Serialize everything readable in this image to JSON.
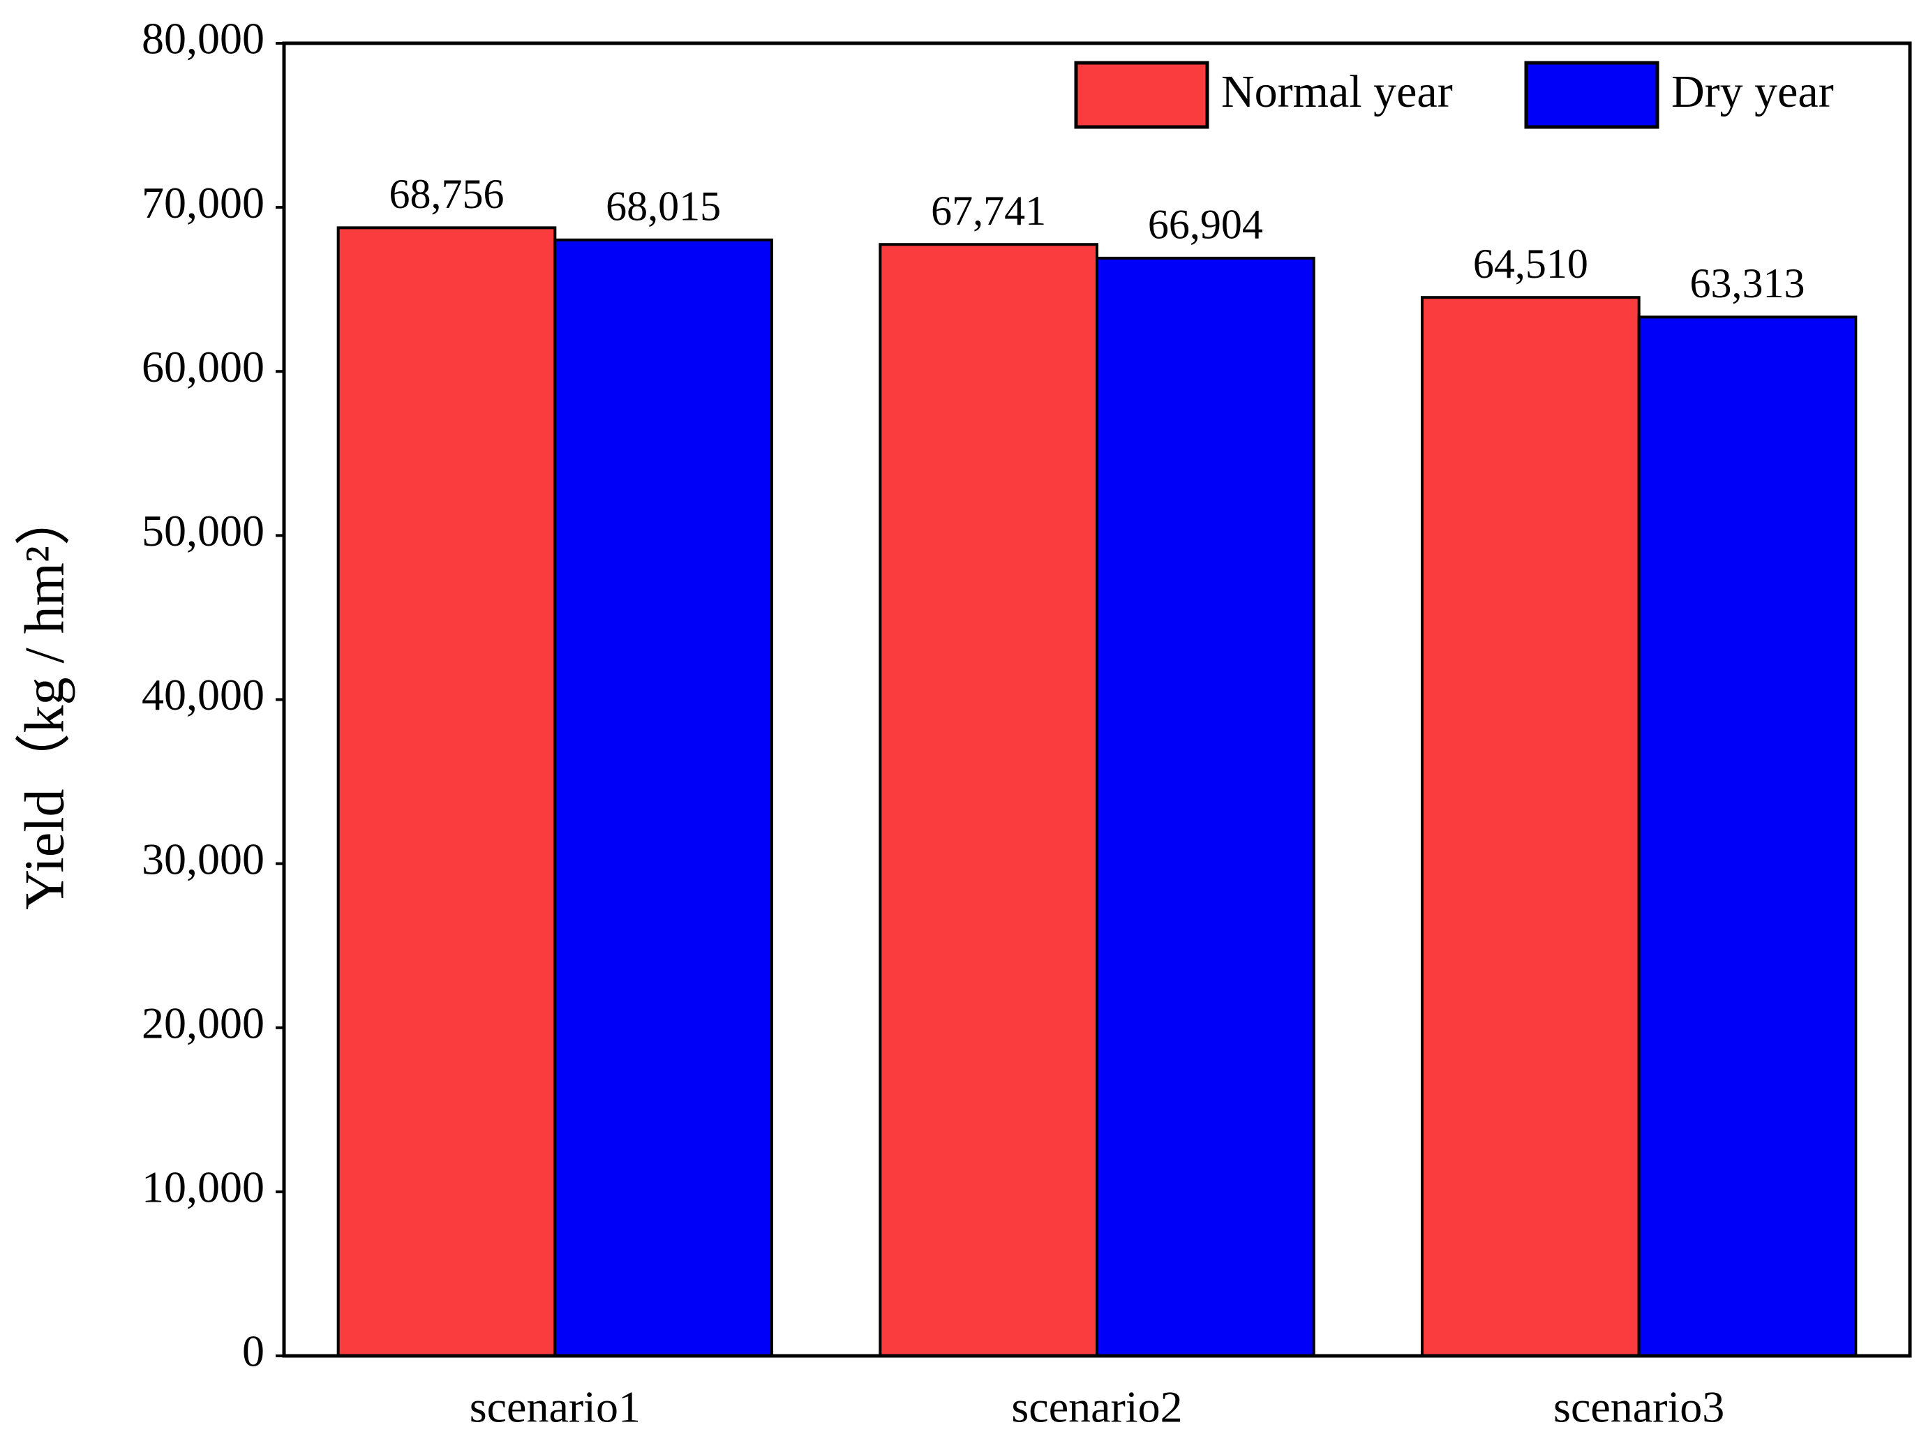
{
  "chart_data": {
    "type": "bar",
    "y_label": "Yield（kg / hm²）",
    "categories": [
      "scenario1",
      "scenario2",
      "scenario3"
    ],
    "series": [
      {
        "name": "Normal year",
        "color": "#fa3c3e",
        "values": [
          68756,
          67741,
          64510
        ],
        "value_labels": [
          "68,756",
          "67,741",
          "64,510"
        ]
      },
      {
        "name": "Dry year",
        "color": "#0000fa",
        "values": [
          68015,
          66904,
          63313
        ],
        "value_labels": [
          "68,015",
          "66,904",
          "63,313"
        ]
      }
    ],
    "ylim": [
      0,
      80000
    ],
    "yticks": [
      0,
      {
        "value": 10000,
        "label": "10,000"
      },
      {
        "value": 20000,
        "label": "20,000"
      },
      {
        "value": 30000,
        "label": "30,000"
      },
      {
        "value": 40000,
        "label": "40,000"
      },
      {
        "value": 50000,
        "label": "50,000"
      },
      {
        "value": 60000,
        "label": "60,000"
      },
      {
        "value": 70000,
        "label": "70,000"
      },
      {
        "value": 80000,
        "label": "80,000"
      }
    ],
    "legend": "upper right",
    "grid": false
  }
}
